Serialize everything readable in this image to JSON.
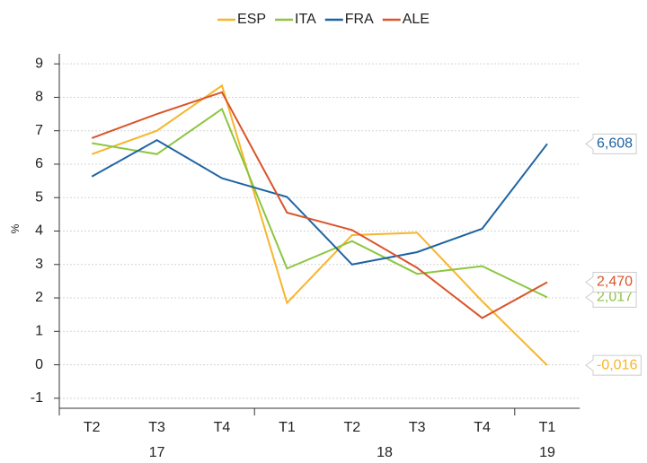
{
  "chart_data": {
    "type": "line",
    "y_label": "%",
    "categories": [
      "T2",
      "T3",
      "T4",
      "T1",
      "T2",
      "T3",
      "T4",
      "T1"
    ],
    "x_groups": [
      {
        "label": "17",
        "size": 3
      },
      {
        "label": "18",
        "size": 4
      },
      {
        "label": "19",
        "size": 1
      }
    ],
    "series": [
      {
        "name": "ESP",
        "color": "#f7b52c",
        "values": [
          6.3,
          7.0,
          8.35,
          1.85,
          3.88,
          3.95,
          1.9,
          -0.016
        ],
        "value_labels": [
          null,
          null,
          null,
          null,
          null,
          null,
          null,
          "-0,016"
        ]
      },
      {
        "name": "ITA",
        "color": "#8cc63f",
        "values": [
          6.63,
          6.3,
          7.65,
          2.88,
          3.7,
          2.72,
          2.95,
          2.017
        ],
        "value_labels": [
          null,
          null,
          null,
          null,
          null,
          null,
          null,
          "2,017"
        ]
      },
      {
        "name": "FRA",
        "color": "#1f63a3",
        "values": [
          5.63,
          6.72,
          5.58,
          5.02,
          3.0,
          3.37,
          4.07,
          6.608
        ],
        "value_labels": [
          null,
          null,
          null,
          null,
          null,
          null,
          null,
          "6,608"
        ]
      },
      {
        "name": "ALE",
        "color": "#d9552b",
        "values": [
          6.78,
          7.5,
          8.15,
          4.55,
          4.03,
          2.9,
          1.4,
          2.47
        ],
        "value_labels": [
          null,
          null,
          null,
          null,
          null,
          null,
          null,
          "2,470"
        ]
      }
    ],
    "ylim": [
      -1.3,
      9.3
    ],
    "yticks": [
      -1,
      0,
      1,
      2,
      3,
      4,
      5,
      6,
      7,
      8,
      9
    ],
    "grid": true,
    "legend": "top"
  }
}
